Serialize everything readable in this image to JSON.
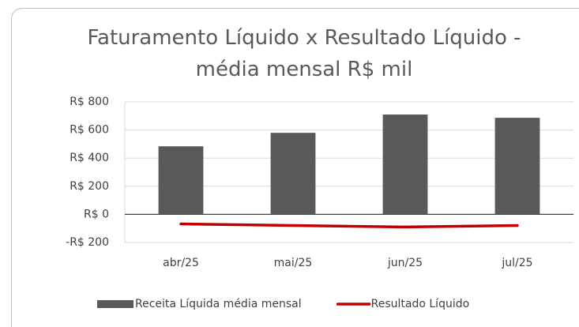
{
  "chart_data": {
    "type": "bar",
    "title": "Faturamento Líquido x Resultado Líquido - média mensal R$ mil",
    "categories": [
      "abr/25",
      "mai/25",
      "jun/25",
      "jul/25"
    ],
    "series": [
      {
        "name": "Receita Líquida média mensal",
        "type": "bar",
        "color": "#595959",
        "values": [
          484,
          580,
          710,
          687
        ]
      },
      {
        "name": "Resultado Líquido",
        "type": "line",
        "color": "#c00000",
        "values": [
          -68,
          -79,
          -90,
          -79
        ]
      }
    ],
    "ylim": [
      -200,
      800
    ],
    "yticks": [
      {
        "value": -200,
        "label": "-R$ 200"
      },
      {
        "value": 0,
        "label": "R$ 0"
      },
      {
        "value": 200,
        "label": "R$ 200"
      },
      {
        "value": 400,
        "label": "R$ 400"
      },
      {
        "value": 600,
        "label": "R$ 600"
      },
      {
        "value": 800,
        "label": "R$ 800"
      }
    ],
    "grid": true,
    "legend": "bottom"
  }
}
